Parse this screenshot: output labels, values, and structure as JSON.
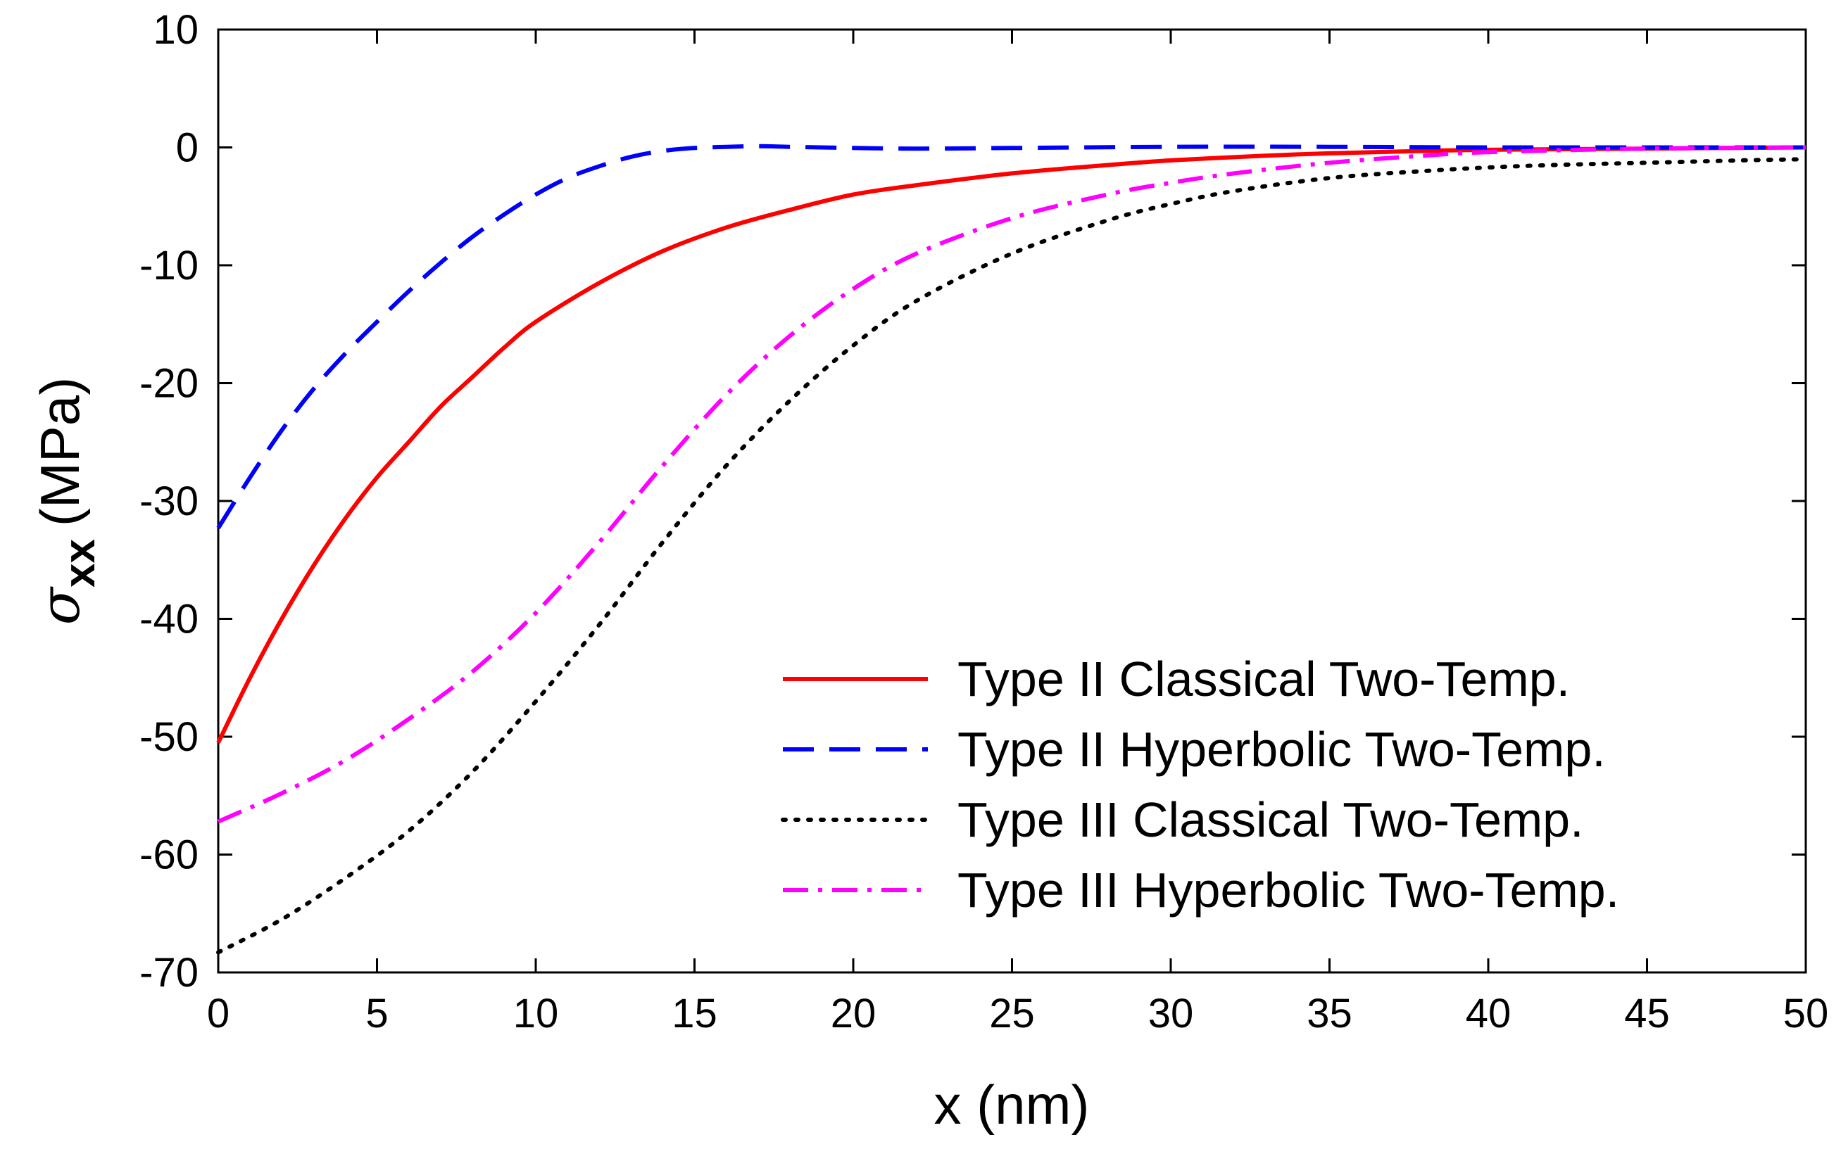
{
  "chart_data": {
    "type": "line",
    "title": "",
    "xlabel": "x (nm)",
    "ylabel": {
      "symbol": "σ",
      "subscript": "xx",
      "unit": "(MPa)"
    },
    "xlim": [
      0,
      50
    ],
    "ylim": [
      -70,
      10
    ],
    "xticks": [
      0,
      5,
      10,
      15,
      20,
      25,
      30,
      35,
      40,
      45,
      50
    ],
    "yticks": [
      10,
      0,
      -10,
      -20,
      -30,
      -40,
      -50,
      -60,
      -70
    ],
    "grid": false,
    "legend_position": "bottom-right",
    "series": [
      {
        "name": "Type II Classical Two-Temp.",
        "color": "#ff0000",
        "style": "solid",
        "x": [
          0,
          1,
          2,
          3,
          4,
          5,
          6,
          7,
          8,
          9,
          10,
          12,
          14,
          16,
          18,
          20,
          22,
          25,
          28,
          30,
          33,
          35,
          38,
          40,
          45,
          50
        ],
        "y": [
          -50.5,
          -45,
          -40,
          -35.5,
          -31.5,
          -28,
          -25,
          -22,
          -19.5,
          -17,
          -14.8,
          -11.5,
          -8.8,
          -6.8,
          -5.3,
          -4,
          -3.2,
          -2.2,
          -1.5,
          -1.1,
          -0.7,
          -0.5,
          -0.3,
          -0.2,
          -0.1,
          0
        ]
      },
      {
        "name": "Type II Hyperbolic Two-Temp.",
        "color": "#0000ff",
        "style": "dashed",
        "x": [
          0,
          1,
          2,
          3,
          4,
          5,
          6,
          7,
          8,
          9,
          10,
          11,
          12,
          13,
          14,
          15,
          16,
          17,
          18,
          20,
          22,
          25,
          30,
          35,
          40,
          45,
          50
        ],
        "y": [
          -32.3,
          -28,
          -24,
          -20.5,
          -17.5,
          -14.8,
          -12.2,
          -9.8,
          -7.6,
          -5.7,
          -4,
          -2.6,
          -1.6,
          -0.8,
          -0.3,
          -0.05,
          0.05,
          0.1,
          0.05,
          -0.05,
          -0.1,
          -0.05,
          0.05,
          0.05,
          0,
          0,
          0
        ]
      },
      {
        "name": "Type III Classical Two-Temp.",
        "color": "#000000",
        "style": "dotted",
        "x": [
          0,
          2,
          4,
          6,
          8,
          10,
          12,
          14,
          16,
          18,
          20,
          22,
          25,
          28,
          30,
          32,
          35,
          38,
          40,
          42,
          45,
          48,
          50
        ],
        "y": [
          -68.3,
          -65.5,
          -62,
          -58,
          -53,
          -47,
          -40.5,
          -33.5,
          -27,
          -21.5,
          -16.8,
          -13,
          -9,
          -6.2,
          -4.8,
          -3.7,
          -2.6,
          -2,
          -1.7,
          -1.5,
          -1.3,
          -1.1,
          -1
        ]
      },
      {
        "name": "Type III Hyperbolic Two-Temp.",
        "color": "#ff00ff",
        "style": "dashdot",
        "x": [
          0,
          2,
          4,
          6,
          8,
          10,
          12,
          14,
          16,
          18,
          20,
          22,
          25,
          28,
          30,
          32,
          35,
          38,
          40,
          45,
          50
        ],
        "y": [
          -57.2,
          -54.8,
          -52,
          -48.5,
          -44.5,
          -39.5,
          -33.5,
          -27,
          -21,
          -16,
          -12,
          -9,
          -6,
          -4,
          -3,
          -2.2,
          -1.3,
          -0.7,
          -0.4,
          -0.1,
          0
        ]
      }
    ]
  }
}
